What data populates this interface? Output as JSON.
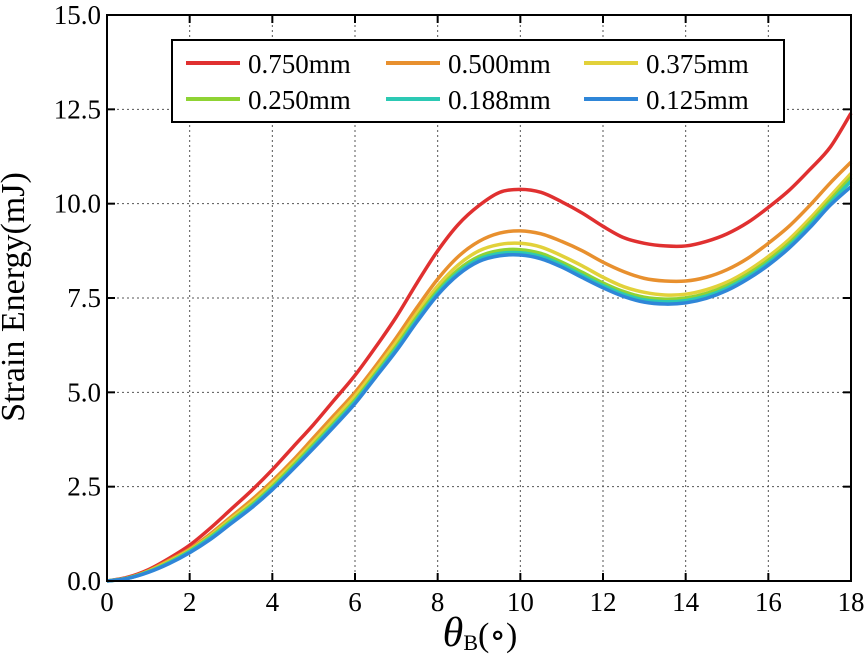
{
  "chart_data": {
    "type": "line",
    "xlabel": "θ",
    "xlabel_sub": "B",
    "xlabel_unit": "(∘)",
    "ylabel": "Strain Energy(mJ)",
    "xlim": [
      0,
      18
    ],
    "ylim": [
      0,
      15
    ],
    "xticks": [
      0,
      2,
      4,
      6,
      8,
      10,
      12,
      14,
      16,
      18
    ],
    "xtick_labels": [
      "0",
      "2",
      "4",
      "6",
      "8",
      "10",
      "12",
      "14",
      "16",
      "18"
    ],
    "yticks": [
      0,
      2.5,
      5,
      7.5,
      10,
      12.5,
      15
    ],
    "ytick_labels": [
      "0.0",
      "2.5",
      "5.0",
      "7.5",
      "10.0",
      "12.5",
      "15.0"
    ],
    "grid": true,
    "legend_position": "top-center",
    "x": [
      0,
      0.5,
      1,
      1.5,
      2,
      2.5,
      3,
      3.5,
      4,
      4.5,
      5,
      5.5,
      6,
      6.5,
      7,
      7.5,
      8,
      8.5,
      9,
      9.5,
      10,
      10.5,
      11,
      11.5,
      12,
      12.5,
      13,
      13.5,
      14,
      14.5,
      15,
      15.5,
      16,
      16.5,
      17,
      17.5,
      18
    ],
    "series": [
      {
        "name": "0.750mm",
        "color": "#e03030",
        "values": [
          0,
          0.1,
          0.3,
          0.6,
          0.95,
          1.4,
          1.9,
          2.4,
          2.95,
          3.55,
          4.15,
          4.8,
          5.45,
          6.2,
          7.0,
          7.9,
          8.75,
          9.45,
          9.95,
          10.3,
          10.38,
          10.3,
          10.05,
          9.75,
          9.4,
          9.1,
          8.95,
          8.88,
          8.88,
          9.0,
          9.2,
          9.5,
          9.9,
          10.35,
          10.9,
          11.5,
          12.4
        ]
      },
      {
        "name": "0.500mm",
        "color": "#e8902e",
        "values": [
          0,
          0.08,
          0.27,
          0.55,
          0.85,
          1.25,
          1.7,
          2.15,
          2.65,
          3.2,
          3.8,
          4.4,
          5.0,
          5.7,
          6.45,
          7.25,
          8.0,
          8.6,
          9.0,
          9.22,
          9.28,
          9.2,
          9.0,
          8.75,
          8.45,
          8.2,
          8.02,
          7.95,
          7.95,
          8.05,
          8.25,
          8.55,
          8.95,
          9.4,
          9.95,
          10.55,
          11.1
        ]
      },
      {
        "name": "0.375mm",
        "color": "#e2d13a",
        "values": [
          0,
          0.08,
          0.26,
          0.52,
          0.82,
          1.2,
          1.65,
          2.08,
          2.58,
          3.12,
          3.7,
          4.3,
          4.9,
          5.6,
          6.33,
          7.1,
          7.82,
          8.38,
          8.75,
          8.92,
          8.95,
          8.85,
          8.62,
          8.35,
          8.05,
          7.8,
          7.65,
          7.58,
          7.6,
          7.72,
          7.92,
          8.22,
          8.6,
          9.05,
          9.6,
          10.2,
          10.8
        ]
      },
      {
        "name": "0.250mm",
        "color": "#8fd334",
        "values": [
          0,
          0.08,
          0.25,
          0.5,
          0.8,
          1.17,
          1.6,
          2.02,
          2.5,
          3.05,
          3.62,
          4.2,
          4.8,
          5.5,
          6.22,
          7.0,
          7.7,
          8.25,
          8.6,
          8.76,
          8.78,
          8.68,
          8.45,
          8.18,
          7.9,
          7.67,
          7.52,
          7.47,
          7.5,
          7.62,
          7.83,
          8.13,
          8.5,
          8.95,
          9.5,
          10.1,
          10.7
        ]
      },
      {
        "name": "0.188mm",
        "color": "#2cc9b4",
        "values": [
          0,
          0.07,
          0.24,
          0.48,
          0.78,
          1.14,
          1.56,
          1.98,
          2.46,
          3.0,
          3.57,
          4.15,
          4.75,
          5.45,
          6.16,
          6.93,
          7.64,
          8.18,
          8.53,
          8.68,
          8.7,
          8.6,
          8.38,
          8.1,
          7.83,
          7.6,
          7.45,
          7.4,
          7.43,
          7.55,
          7.76,
          8.06,
          8.43,
          8.88,
          9.42,
          10.02,
          10.6
        ]
      },
      {
        "name": "0.125mm",
        "color": "#2f86d8",
        "values": [
          0,
          0.07,
          0.23,
          0.46,
          0.75,
          1.1,
          1.52,
          1.94,
          2.42,
          2.96,
          3.52,
          4.1,
          4.7,
          5.4,
          6.1,
          6.87,
          7.58,
          8.12,
          8.47,
          8.62,
          8.64,
          8.54,
          8.32,
          8.04,
          7.77,
          7.54,
          7.39,
          7.34,
          7.37,
          7.49,
          7.7,
          8.0,
          8.37,
          8.82,
          9.36,
          9.96,
          10.45
        ]
      }
    ]
  }
}
